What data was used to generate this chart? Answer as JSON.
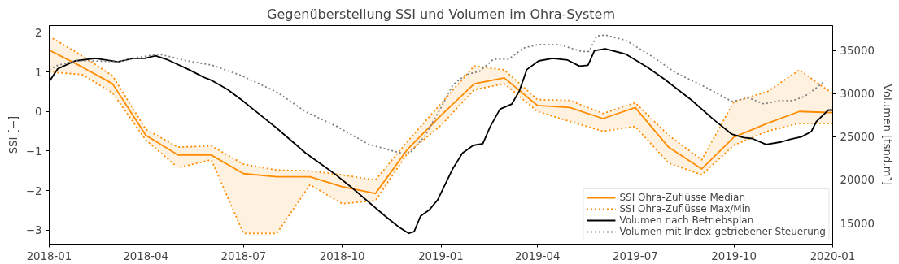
{
  "chart_data": {
    "type": "line",
    "title": "Gegenüberstellung SSI und Volumen im Ohra-System",
    "ylabel": "SSI [−]",
    "y2label": "Volumen [tsnd.m³]",
    "xlim": [
      "2018-01",
      "2020-01"
    ],
    "xticks": [
      "2018-01",
      "2018-04",
      "2018-07",
      "2018-10",
      "2019-01",
      "2019-04",
      "2019-07",
      "2019-10",
      "2020-01"
    ],
    "ylim": [
      -3.35,
      2.17
    ],
    "yticks": [
      {
        "value": -3,
        "label": "−3"
      },
      {
        "value": -2,
        "label": "−2"
      },
      {
        "value": -1,
        "label": "−1"
      },
      0,
      1,
      2
    ],
    "y2lim": [
      12550,
      37900
    ],
    "y2ticks": [
      15000,
      20000,
      25000,
      30000,
      35000
    ],
    "grid": false,
    "legend": "bottom right",
    "series": [
      {
        "name": "SSI Ohra-Zuflüsse Median",
        "color": "#ff8c00",
        "line_style": "solid",
        "x": [
          "2018-01",
          "2018-02",
          "2018-03",
          "2018-04",
          "2018-05",
          "2018-06",
          "2018-07",
          "2018-08",
          "2018-09",
          "2018-10",
          "2018-11",
          "2018-12",
          "2019-01",
          "2019-02",
          "2019-03",
          "2019-04",
          "2019-05",
          "2019-06",
          "2019-07",
          "2019-08",
          "2019-09",
          "2019-10",
          "2019-11",
          "2019-12",
          "2020-01"
        ],
        "values": [
          1.55,
          1.12,
          0.7,
          -0.6,
          -1.1,
          -1.1,
          -1.57,
          -1.65,
          -1.65,
          -1.9,
          -2.07,
          -0.95,
          -0.1,
          0.7,
          0.85,
          0.15,
          0.1,
          -0.18,
          0.1,
          -0.9,
          -1.45,
          -0.65,
          -0.3,
          0.0,
          -0.03
        ],
        "lower": [
          1.0,
          0.93,
          0.47,
          -0.72,
          -1.42,
          -1.22,
          -3.08,
          -3.08,
          -1.85,
          -2.33,
          -2.25,
          -1.05,
          -0.35,
          0.55,
          0.7,
          0.0,
          -0.25,
          -0.5,
          -0.38,
          -1.3,
          -1.6,
          -0.85,
          -0.5,
          -0.3,
          -0.3
        ],
        "upper": [
          1.9,
          1.4,
          0.9,
          -0.45,
          -0.9,
          -0.87,
          -1.33,
          -1.48,
          -1.5,
          -1.6,
          -1.73,
          -0.75,
          0.2,
          1.15,
          1.05,
          0.3,
          0.28,
          -0.05,
          0.22,
          -0.6,
          -1.22,
          0.25,
          0.5,
          1.05,
          0.45
        ]
      },
      {
        "name": "SSI Ohra-Zuflüsse Max/Min",
        "color": "#ff8c00",
        "line_style": "dotted",
        "x": [
          "2018-01",
          "2018-02",
          "2018-03",
          "2018-04",
          "2018-05",
          "2018-06",
          "2018-07",
          "2018-08",
          "2018-09",
          "2018-10",
          "2018-11",
          "2018-12",
          "2019-01",
          "2019-02",
          "2019-03",
          "2019-04",
          "2019-05",
          "2019-06",
          "2019-07",
          "2019-08",
          "2019-09",
          "2019-10",
          "2019-11",
          "2019-12",
          "2020-01"
        ],
        "values": [
          1.9,
          1.4,
          0.9,
          -0.45,
          -0.9,
          -0.87,
          -1.33,
          -1.48,
          -1.5,
          -1.6,
          -1.73,
          -0.75,
          0.2,
          1.15,
          1.05,
          0.3,
          0.28,
          -0.05,
          0.22,
          -0.6,
          -1.22,
          0.25,
          0.5,
          1.05,
          0.45
        ]
      },
      {
        "color": "#ff8c00",
        "line_style": "dotted",
        "x": [
          "2018-01",
          "2018-02",
          "2018-03",
          "2018-04",
          "2018-05",
          "2018-06",
          "2018-07",
          "2018-08",
          "2018-09",
          "2018-10",
          "2018-11",
          "2018-12",
          "2019-01",
          "2019-02",
          "2019-03",
          "2019-04",
          "2019-05",
          "2019-06",
          "2019-07",
          "2019-08",
          "2019-09",
          "2019-10",
          "2019-11",
          "2019-12",
          "2020-01"
        ],
        "values": [
          1.0,
          0.93,
          0.47,
          -0.72,
          -1.42,
          -1.22,
          -3.08,
          -3.08,
          -1.85,
          -2.33,
          -2.25,
          -1.05,
          -0.35,
          0.55,
          0.7,
          0.0,
          -0.25,
          -0.5,
          -0.38,
          -1.3,
          -1.6,
          -0.85,
          -0.5,
          -0.3,
          -0.3
        ]
      },
      {
        "name": "Volumen nach Betriebsplan",
        "color": "#000000",
        "line_style": "solid",
        "axis": "y2",
        "x": [
          "2018-01-01",
          "2018-01-09",
          "2018-01-25",
          "2018-02-13",
          "2018-03-06",
          "2018-03-20",
          "2018-03-31",
          "2018-04-10",
          "2018-04-22",
          "2018-05-11",
          "2018-05-25",
          "2018-06-02",
          "2018-06-16",
          "2018-06-29",
          "2018-07-13",
          "2018-08-01",
          "2018-08-28",
          "2018-09-25",
          "2018-10-09",
          "2018-10-25",
          "2018-11-10",
          "2018-11-23",
          "2018-12-02",
          "2018-12-07",
          "2018-12-13",
          "2018-12-21",
          "2018-12-29",
          "2019-01-12",
          "2019-01-21",
          "2019-01-31",
          "2019-02-09",
          "2019-02-16",
          "2019-02-25",
          "2019-03-08",
          "2019-03-15",
          "2019-03-22",
          "2019-04-02",
          "2019-04-15",
          "2019-04-29",
          "2019-05-10",
          "2019-05-18",
          "2019-05-24",
          "2019-06-03",
          "2019-06-22",
          "2019-07-12",
          "2019-07-28",
          "2019-08-22",
          "2019-09-12",
          "2019-09-29",
          "2019-10-10",
          "2019-10-18",
          "2019-10-31",
          "2019-11-14",
          "2019-11-22",
          "2019-12-03",
          "2019-12-12",
          "2019-12-17",
          "2019-12-28",
          "2020-01-01"
        ],
        "values": [
          31400,
          32900,
          33800,
          34100,
          33700,
          34100,
          34100,
          34400,
          33900,
          32800,
          31900,
          31500,
          30500,
          29300,
          27900,
          26000,
          23100,
          20600,
          19200,
          17500,
          15800,
          14500,
          13800,
          14000,
          15800,
          16500,
          17700,
          21300,
          23100,
          24000,
          24200,
          26200,
          28200,
          28800,
          30300,
          32800,
          33800,
          34100,
          33900,
          33200,
          33300,
          35000,
          35200,
          34600,
          33100,
          31700,
          29300,
          27000,
          25300,
          24900,
          24800,
          24100,
          24400,
          24700,
          25000,
          25600,
          26800,
          28100,
          28100
        ]
      },
      {
        "name": "Volumen mit Index-getriebener Steuerung",
        "color": "#808080",
        "line_style": "dotted",
        "axis": "y2",
        "x": [
          "2018-01-01",
          "2018-01-09",
          "2018-01-25",
          "2018-02-13",
          "2018-03-06",
          "2018-03-20",
          "2018-04-13",
          "2018-05-10",
          "2018-06-02",
          "2018-06-29",
          "2018-08-01",
          "2018-08-28",
          "2018-09-26",
          "2018-10-26",
          "2018-11-25",
          "2018-12-03",
          "2018-12-17",
          "2019-01-02",
          "2019-01-12",
          "2019-01-24",
          "2019-02-06",
          "2019-02-19",
          "2019-03-05",
          "2019-03-19",
          "2019-04-02",
          "2019-04-21",
          "2019-05-12",
          "2019-05-19",
          "2019-05-26",
          "2019-06-03",
          "2019-06-22",
          "2019-07-17",
          "2019-08-08",
          "2019-09-04",
          "2019-09-29",
          "2019-10-15",
          "2019-10-29",
          "2019-11-12",
          "2019-11-25",
          "2019-12-06",
          "2019-12-15",
          "2019-12-25"
        ],
        "values": [
          32800,
          33300,
          33800,
          33800,
          33700,
          34100,
          34600,
          33800,
          33300,
          32100,
          30200,
          27900,
          26200,
          24100,
          23100,
          23100,
          25100,
          28600,
          31000,
          32200,
          32600,
          34000,
          34000,
          35300,
          35700,
          35700,
          34900,
          34900,
          36700,
          36800,
          36200,
          34300,
          32400,
          30800,
          29100,
          29500,
          28800,
          29200,
          29200,
          29700,
          30500,
          31500
        ]
      }
    ]
  }
}
